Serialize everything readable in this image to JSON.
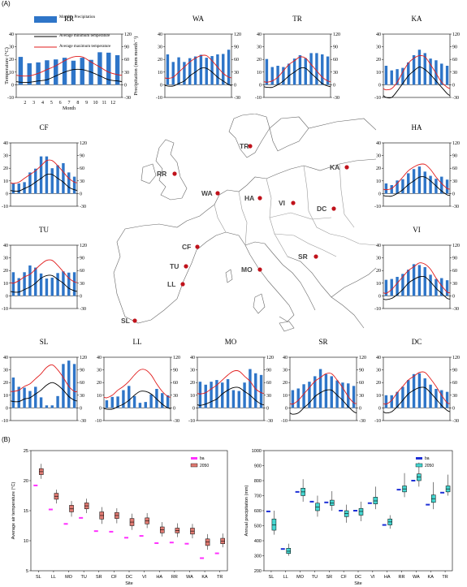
{
  "panel_a_label": "(A)",
  "panel_b_label": "(B)",
  "legend": {
    "precip": "Monthly Precipitation",
    "tmin": "Average minimum temperature",
    "tmax": "Average maximum temperature"
  },
  "axis_labels": {
    "temp": "Temperature (°C)",
    "precip": "Precipitation (mm month⁻¹)",
    "month": "Month"
  },
  "month_ticks": [
    "2",
    "3",
    "4",
    "5",
    "6",
    "7",
    "8",
    "9",
    "10",
    "11",
    "12"
  ],
  "colors": {
    "bar": "#2e75c8",
    "tmax": "#e11b1b",
    "tmin": "#000000",
    "site_dot": "#c0121b",
    "temp_baseline": "#ff30ff",
    "temp_2050": "#e07a72",
    "prec_baseline": "#1d2fd6",
    "prec_2050": "#44d6d0"
  },
  "chart_data": [
    {
      "id": "RR",
      "type": "bar+line",
      "title": "RR",
      "ylim_temp": [
        -10,
        40
      ],
      "ylim_precip": [
        -30,
        120
      ],
      "precip": [
        66,
        51,
        53,
        58,
        60,
        64,
        57,
        64,
        59,
        77,
        76,
        70
      ],
      "tmax": [
        7,
        7,
        9,
        12,
        15,
        19,
        22,
        22,
        18,
        14,
        10,
        8
      ],
      "tmin": [
        2,
        2,
        3,
        4,
        7,
        10,
        12,
        12,
        10,
        7,
        4,
        3
      ]
    },
    {
      "id": "WA",
      "type": "bar+line",
      "title": "WA",
      "ylim_temp": [
        -10,
        40
      ],
      "ylim_precip": [
        -30,
        120
      ],
      "precip": [
        72,
        54,
        65,
        54,
        63,
        67,
        71,
        64,
        68,
        72,
        73,
        83
      ],
      "tmax": [
        5,
        6,
        10,
        14,
        18,
        21,
        23,
        23,
        19,
        14,
        9,
        6
      ],
      "tmin": [
        -1,
        -1,
        1,
        3,
        7,
        10,
        13,
        13,
        10,
        6,
        3,
        0
      ]
    },
    {
      "id": "TR",
      "type": "bar+line",
      "title": "TR",
      "ylim_temp": [
        -10,
        40
      ],
      "ylim_precip": [
        -30,
        120
      ],
      "precip": [
        61,
        42,
        45,
        42,
        50,
        62,
        70,
        63,
        75,
        75,
        72,
        67
      ],
      "tmax": [
        2,
        3,
        6,
        11,
        16,
        19,
        22,
        21,
        16,
        11,
        6,
        3
      ],
      "tmin": [
        -2,
        -2,
        0,
        3,
        7,
        10,
        13,
        13,
        9,
        5,
        1,
        -1
      ]
    },
    {
      "id": "KA",
      "type": "bar+line",
      "title": "KA",
      "ylim_temp": [
        -10,
        40
      ],
      "ylim_precip": [
        -30,
        120
      ],
      "precip": [
        45,
        34,
        37,
        40,
        53,
        70,
        83,
        75,
        62,
        58,
        50,
        45
      ],
      "tmax": [
        -4,
        -3,
        2,
        10,
        17,
        21,
        23,
        22,
        16,
        9,
        2,
        -2
      ],
      "tmin": [
        -10,
        -10,
        -5,
        1,
        7,
        11,
        14,
        12,
        8,
        3,
        -2,
        -7
      ]
    },
    {
      "id": "CF",
      "type": "bar+line",
      "title": "CF",
      "ylim_temp": [
        -10,
        40
      ],
      "ylim_precip": [
        -30,
        120
      ],
      "precip": [
        25,
        24,
        27,
        50,
        59,
        88,
        88,
        60,
        67,
        72,
        50,
        40
      ],
      "tmax": [
        8,
        9,
        12,
        15,
        18,
        22,
        26,
        26,
        22,
        17,
        12,
        9
      ],
      "tmin": [
        2,
        2,
        4,
        6,
        9,
        12,
        15,
        15,
        12,
        9,
        5,
        3
      ]
    },
    {
      "id": "HA",
      "type": "bar+line",
      "title": "HA",
      "ylim_temp": [
        -10,
        40
      ],
      "ylim_precip": [
        -30,
        120
      ],
      "precip": [
        24,
        20,
        31,
        34,
        48,
        58,
        64,
        52,
        42,
        35,
        40,
        33
      ],
      "tmax": [
        3,
        4,
        8,
        13,
        18,
        21,
        23,
        23,
        19,
        13,
        8,
        4
      ],
      "tmin": [
        -2,
        -2,
        0,
        3,
        7,
        10,
        13,
        13,
        10,
        6,
        2,
        -1
      ]
    },
    {
      "id": "TU",
      "type": "bar+line",
      "title": "TU",
      "ylim_temp": [
        -10,
        40
      ],
      "ylim_precip": [
        -30,
        120
      ],
      "precip": [
        56,
        42,
        56,
        72,
        67,
        53,
        41,
        43,
        54,
        58,
        55,
        56
      ],
      "tmax": [
        10,
        12,
        15,
        17,
        21,
        25,
        28,
        28,
        24,
        19,
        14,
        11
      ],
      "tmin": [
        3,
        3,
        5,
        7,
        10,
        14,
        16,
        16,
        13,
        10,
        6,
        4
      ]
    },
    {
      "id": "VI",
      "type": "bar+line",
      "title": "VI",
      "ylim_temp": [
        -10,
        40
      ],
      "ylim_precip": [
        -30,
        120
      ],
      "precip": [
        38,
        40,
        45,
        52,
        62,
        75,
        73,
        68,
        50,
        40,
        42,
        37
      ],
      "tmax": [
        2,
        5,
        10,
        15,
        20,
        23,
        26,
        25,
        21,
        14,
        8,
        3
      ],
      "tmin": [
        -3,
        -2,
        1,
        5,
        10,
        13,
        15,
        15,
        11,
        6,
        2,
        -2
      ]
    },
    {
      "id": "SL",
      "type": "bar+line",
      "title": "SL",
      "ylim_temp": [
        -10,
        40
      ],
      "ylim_precip": [
        -30,
        120
      ],
      "precip": [
        72,
        50,
        48,
        40,
        50,
        25,
        6,
        6,
        28,
        104,
        112,
        104
      ],
      "tmax": [
        13,
        14,
        17,
        19,
        23,
        27,
        32,
        34,
        30,
        24,
        17,
        13
      ],
      "tmin": [
        5,
        5,
        7,
        8,
        11,
        14,
        18,
        20,
        18,
        14,
        9,
        6
      ]
    },
    {
      "id": "LL",
      "type": "bar+line",
      "title": "LL",
      "ylim_temp": [
        -10,
        40
      ],
      "ylim_precip": [
        -30,
        120
      ],
      "precip": [
        18,
        26,
        27,
        42,
        52,
        28,
        12,
        14,
        32,
        45,
        35,
        30
      ],
      "tmax": [
        8,
        10,
        14,
        17,
        21,
        26,
        30,
        30,
        26,
        19,
        13,
        9
      ],
      "tmin": [
        -1,
        -1,
        1,
        3,
        6,
        10,
        13,
        13,
        11,
        7,
        3,
        0
      ]
    },
    {
      "id": "MO",
      "type": "bar+line",
      "title": "MO",
      "ylim_temp": [
        -10,
        40
      ],
      "ylim_precip": [
        -30,
        120
      ],
      "precip": [
        62,
        55,
        62,
        66,
        60,
        68,
        42,
        40,
        60,
        92,
        82,
        78
      ],
      "tmax": [
        11,
        12,
        15,
        18,
        22,
        26,
        29,
        29,
        25,
        21,
        15,
        12
      ],
      "tmin": [
        2,
        3,
        5,
        7,
        11,
        14,
        16,
        16,
        13,
        10,
        6,
        3
      ]
    },
    {
      "id": "SR",
      "type": "bar+line",
      "title": "SR",
      "ylim_temp": [
        -10,
        40
      ],
      "ylim_precip": [
        -30,
        120
      ],
      "precip": [
        42,
        46,
        56,
        62,
        75,
        92,
        80,
        75,
        65,
        60,
        58,
        52
      ],
      "tmax": [
        3,
        6,
        11,
        16,
        21,
        24,
        27,
        27,
        22,
        16,
        9,
        4
      ],
      "tmin": [
        -5,
        -4,
        0,
        4,
        9,
        12,
        14,
        14,
        10,
        6,
        1,
        -3
      ]
    },
    {
      "id": "DC",
      "type": "bar+line",
      "title": "DC",
      "ylim_temp": [
        -10,
        40
      ],
      "ylim_precip": [
        -30,
        120
      ],
      "precip": [
        30,
        30,
        38,
        50,
        66,
        80,
        82,
        70,
        55,
        45,
        42,
        38
      ],
      "tmax": [
        3,
        6,
        12,
        17,
        22,
        25,
        28,
        28,
        23,
        17,
        10,
        4
      ],
      "tmin": [
        -4,
        -3,
        1,
        6,
        11,
        14,
        16,
        16,
        12,
        7,
        2,
        -2
      ]
    },
    {
      "id": "temp-box",
      "type": "box",
      "ylabel": "Average air temperature (°C)",
      "xlabel": "Site",
      "ylim": [
        5,
        25
      ],
      "yticks": [
        5,
        10,
        15,
        20,
        25
      ],
      "legend": [
        "ba",
        "2050"
      ],
      "sites": [
        "SL",
        "LL",
        "MO",
        "TU",
        "SR",
        "CF",
        "DC",
        "VI",
        "HA",
        "RR",
        "WA",
        "KA",
        "TR"
      ],
      "baseline": [
        19.2,
        15.2,
        12.8,
        13.8,
        11.6,
        11.5,
        10.5,
        10.8,
        9.6,
        9.7,
        9.5,
        7.1,
        7.9
      ],
      "future_median": [
        21.5,
        17.4,
        15.3,
        15.8,
        14.2,
        14.2,
        13.1,
        13.3,
        11.8,
        11.7,
        11.6,
        9.8,
        9.9
      ],
      "future_q1": [
        21.0,
        16.9,
        14.8,
        15.3,
        13.6,
        13.7,
        12.5,
        12.8,
        11.3,
        11.3,
        11.1,
        9.2,
        9.5
      ],
      "future_q3": [
        22.0,
        17.9,
        15.9,
        16.3,
        14.8,
        14.7,
        13.7,
        13.8,
        12.3,
        12.1,
        12.1,
        10.3,
        10.4
      ],
      "future_min": [
        20.3,
        16.2,
        14.0,
        14.6,
        12.8,
        12.9,
        11.8,
        12.1,
        10.7,
        10.6,
        10.4,
        8.5,
        8.9
      ],
      "future_max": [
        22.8,
        18.5,
        16.6,
        17.0,
        15.6,
        15.4,
        14.5,
        14.6,
        13.1,
        12.9,
        12.8,
        11.1,
        11.2
      ]
    },
    {
      "id": "prec-box",
      "type": "box",
      "ylabel": "Annual precipitation (mm)",
      "xlabel": "Site",
      "ylim": [
        200,
        1000
      ],
      "yticks": [
        200,
        300,
        400,
        500,
        600,
        700,
        800,
        900,
        1000
      ],
      "legend": [
        "ba",
        "2050"
      ],
      "sites": [
        "SL",
        "LL",
        "MO",
        "TU",
        "SR",
        "CF",
        "DC",
        "VI",
        "HA",
        "RR",
        "WA",
        "KA",
        "TR"
      ],
      "baseline": [
        595,
        345,
        725,
        660,
        655,
        600,
        600,
        650,
        505,
        740,
        800,
        640,
        720
      ],
      "future_median": [
        505,
        330,
        725,
        625,
        650,
        580,
        595,
        665,
        525,
        745,
        825,
        680,
        745
      ],
      "future_q1": [
        470,
        315,
        700,
        600,
        635,
        560,
        570,
        645,
        505,
        725,
        800,
        655,
        725
      ],
      "future_q3": [
        545,
        350,
        750,
        650,
        670,
        600,
        615,
        690,
        545,
        765,
        845,
        705,
        765
      ],
      "future_min": [
        440,
        300,
        660,
        560,
        600,
        520,
        530,
        610,
        480,
        690,
        760,
        610,
        700
      ],
      "future_max": [
        600,
        380,
        810,
        700,
        730,
        640,
        660,
        760,
        570,
        850,
        920,
        790,
        840
      ]
    }
  ],
  "map": {
    "sites": [
      {
        "id": "TR",
        "label": "TR"
      },
      {
        "id": "KA",
        "label": "KA"
      },
      {
        "id": "RR",
        "label": "RR"
      },
      {
        "id": "WA",
        "label": "WA"
      },
      {
        "id": "HA",
        "label": "HA"
      },
      {
        "id": "VI",
        "label": "VI"
      },
      {
        "id": "DC",
        "label": "DC"
      },
      {
        "id": "CF",
        "label": "CF"
      },
      {
        "id": "SR",
        "label": "SR"
      },
      {
        "id": "TU",
        "label": "TU"
      },
      {
        "id": "MO",
        "label": "MO"
      },
      {
        "id": "LL",
        "label": "LL"
      },
      {
        "id": "SL",
        "label": "SL"
      }
    ]
  }
}
